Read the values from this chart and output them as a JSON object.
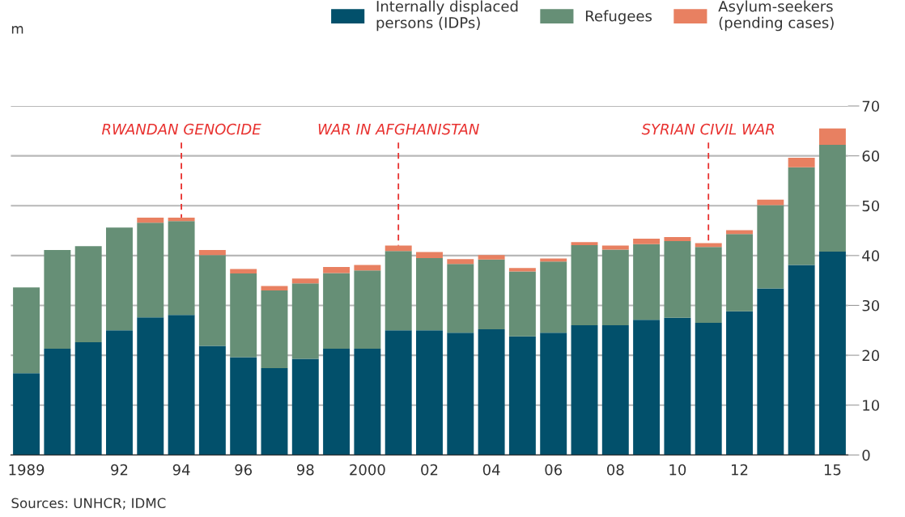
{
  "chart_data": {
    "type": "bar",
    "stacked": true,
    "ylabel": "m",
    "x": [
      1989,
      1990,
      1991,
      1992,
      1993,
      1994,
      1995,
      1996,
      1997,
      1998,
      1999,
      2000,
      2001,
      2002,
      2003,
      2004,
      2005,
      2006,
      2007,
      2008,
      2009,
      2010,
      2011,
      2012,
      2013,
      2014,
      2015
    ],
    "series": [
      {
        "name": "Internally displaced\npersons (IDPs)",
        "color": "#02506b",
        "values": [
          16.4,
          21.3,
          22.6,
          25.0,
          27.6,
          28.1,
          21.9,
          19.6,
          17.4,
          19.3,
          21.3,
          21.3,
          25.0,
          25.0,
          24.5,
          25.2,
          23.8,
          24.5,
          26.0,
          26.0,
          27.1,
          27.5,
          26.5,
          28.8,
          33.4,
          38.1,
          40.8
        ]
      },
      {
        "name": "Refugees",
        "color": "#668f76",
        "values": [
          17.2,
          19.8,
          19.3,
          20.6,
          19.0,
          18.8,
          18.2,
          16.8,
          15.6,
          15.1,
          15.2,
          15.7,
          15.9,
          14.5,
          13.8,
          14.0,
          13.0,
          14.3,
          16.1,
          15.2,
          15.2,
          15.4,
          15.2,
          15.5,
          16.7,
          19.6,
          21.4
        ]
      },
      {
        "name": "Asylum-seekers\n(pending cases)",
        "color": "#e88061",
        "values": [
          null,
          null,
          null,
          null,
          1.0,
          0.7,
          1.0,
          0.9,
          0.9,
          1.0,
          1.2,
          1.1,
          1.1,
          1.2,
          1.0,
          0.9,
          0.7,
          0.6,
          0.6,
          0.8,
          1.1,
          0.8,
          0.8,
          0.8,
          1.1,
          1.9,
          3.3
        ]
      }
    ],
    "xlim": [
      1988.5,
      2015.5
    ],
    "xticks": [
      {
        "value": 1989,
        "label": "1989"
      },
      {
        "value": 1992,
        "label": "92"
      },
      {
        "value": 1994,
        "label": "94"
      },
      {
        "value": 1996,
        "label": "96"
      },
      {
        "value": 1998,
        "label": "98"
      },
      {
        "value": 2000,
        "label": "2000"
      },
      {
        "value": 2002,
        "label": "02"
      },
      {
        "value": 2004,
        "label": "04"
      },
      {
        "value": 2006,
        "label": "06"
      },
      {
        "value": 2008,
        "label": "08"
      },
      {
        "value": 2010,
        "label": "10"
      },
      {
        "value": 2012,
        "label": "12"
      },
      {
        "value": 2015,
        "label": "15"
      }
    ],
    "ylim": [
      0,
      70
    ],
    "yticks": [
      0,
      10,
      20,
      30,
      40,
      50,
      60,
      70
    ],
    "grid": "y",
    "legend": "top right",
    "annotations": [
      {
        "text": "RWANDAN GENOCIDE",
        "x": 1994,
        "y": 47.6
      },
      {
        "text": "WAR IN AFGHANISTAN",
        "x": 2001,
        "y": 42.0
      },
      {
        "text": "SYRIAN CIVIL WAR",
        "x": 2011,
        "y": 42.5
      },
      "Sources: UNHCR; IDMC"
    ]
  }
}
